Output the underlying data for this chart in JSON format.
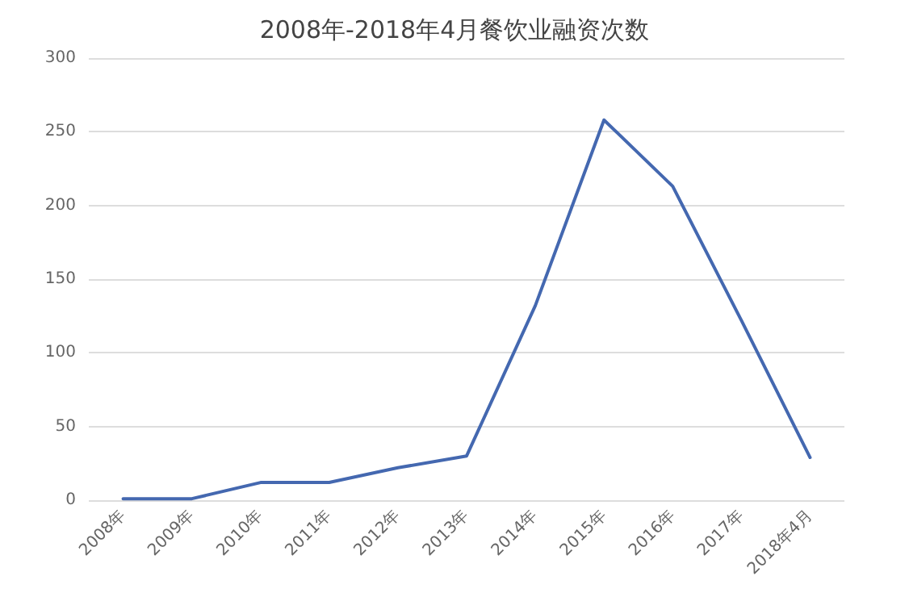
{
  "chart_data": {
    "type": "line",
    "title": "2008年-2018年4月餐饮业融资次数",
    "categories": [
      "2008年",
      "2009年",
      "2010年",
      "2011年",
      "2012年",
      "2013年",
      "2014年",
      "2015年",
      "2016年",
      "2017年",
      "2018年4月"
    ],
    "series": [
      {
        "color": "#4468b0",
        "values": [
          1,
          1,
          12,
          12,
          22,
          30,
          132,
          258,
          213,
          122,
          29
        ]
      }
    ],
    "ylim": [
      0,
      300
    ],
    "yticks": [
      0,
      50,
      100,
      150,
      200,
      250,
      300
    ],
    "grid": "y",
    "marker": "none",
    "line_style": "solid"
  }
}
